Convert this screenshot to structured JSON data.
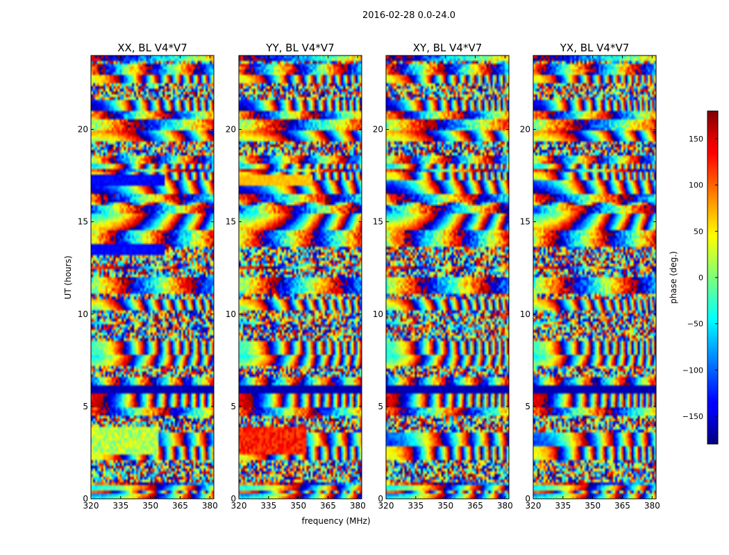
{
  "chart_data": {
    "type": "heatmap",
    "title": "2016-02-28 0.0-24.0",
    "xlabel": "frequency (MHz)",
    "ylabel": "UT (hours)",
    "xlim": [
      320,
      382
    ],
    "ylim": [
      0,
      24
    ],
    "xticks": [
      "320",
      "335",
      "350",
      "365",
      "380"
    ],
    "yticks": [
      "0",
      "5",
      "10",
      "15",
      "20"
    ],
    "colorbar": {
      "label": "phase (deg.)",
      "range": [
        -180,
        180
      ],
      "ticks": [
        "−150",
        "−100",
        "−50",
        "0",
        "50",
        "100",
        "150"
      ],
      "colormap": "jet"
    },
    "panels": [
      {
        "name": "xx",
        "title": "XX, BL V4*V7"
      },
      {
        "name": "yy",
        "title": "YY, BL V4*V7"
      },
      {
        "name": "xy",
        "title": "XY, BL V4*V7"
      },
      {
        "name": "yx",
        "title": "YX, BL V4*V7"
      }
    ]
  }
}
